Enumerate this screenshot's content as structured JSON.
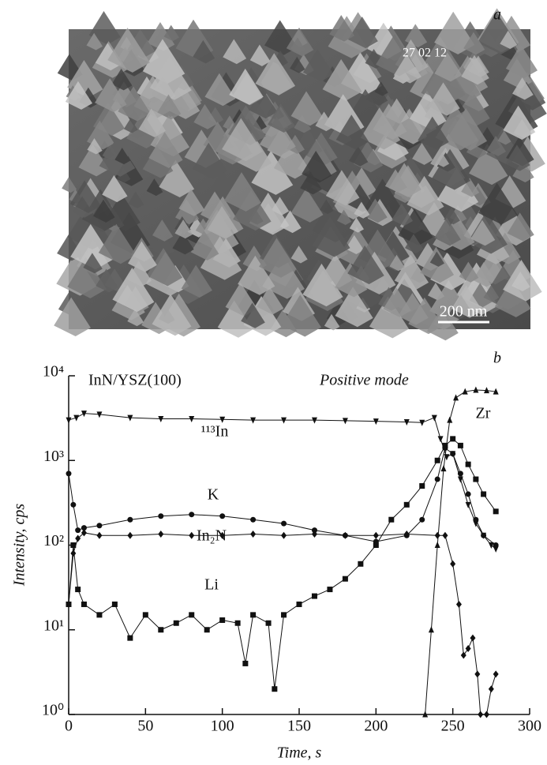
{
  "panel_a": {
    "label": "a",
    "date": "27 02 12",
    "scale_bar": "200 nm"
  },
  "chart_data": {
    "type": "line",
    "panel_label": "b",
    "xlabel": "Time, s",
    "ylabel": "Intensity, cps",
    "annotations": [
      "InN/YSZ(100)",
      "Positive mode",
      "¹¹³In",
      "K",
      "In₂N",
      "Li",
      "Zr"
    ],
    "log_y": true,
    "xlim": [
      0,
      300
    ],
    "xticks": [
      0,
      50,
      100,
      150,
      200,
      250,
      300
    ],
    "ylim": [
      1,
      10000
    ],
    "yticks": [
      {
        "value": 1,
        "label": "10⁰"
      },
      {
        "value": 10,
        "label": "10¹"
      },
      {
        "value": 100,
        "label": "10²"
      },
      {
        "value": 1000,
        "label": "10³"
      },
      {
        "value": 10000,
        "label": "10⁴"
      }
    ],
    "series": [
      {
        "name": "¹¹³In",
        "color": "#111111",
        "marker": "triangle-down",
        "x": [
          0,
          5,
          10,
          20,
          40,
          60,
          80,
          100,
          120,
          140,
          160,
          180,
          200,
          220,
          230,
          238,
          242,
          246,
          250,
          255,
          260,
          265,
          270,
          275,
          278
        ],
        "values": [
          3000,
          3200,
          3600,
          3500,
          3200,
          3100,
          3100,
          3050,
          3000,
          3000,
          3000,
          2950,
          2900,
          2850,
          2800,
          3200,
          1800,
          1100,
          1200,
          600,
          300,
          180,
          130,
          100,
          90
        ]
      },
      {
        "name": "Zr",
        "color": "#111111",
        "marker": "triangle-up",
        "x": [
          232,
          236,
          240,
          244,
          248,
          252,
          258,
          265,
          272,
          278
        ],
        "values": [
          1,
          10,
          100,
          800,
          3000,
          5500,
          6500,
          6800,
          6700,
          6500
        ]
      },
      {
        "name": "K",
        "color": "#111111",
        "marker": "circle",
        "x": [
          0,
          3,
          6,
          10,
          20,
          40,
          60,
          80,
          100,
          120,
          140,
          160,
          180,
          200,
          220,
          230,
          240,
          245,
          250,
          255,
          260,
          265,
          270,
          278
        ],
        "values": [
          700,
          300,
          150,
          160,
          170,
          200,
          220,
          230,
          220,
          200,
          180,
          150,
          130,
          110,
          130,
          200,
          600,
          1400,
          1200,
          700,
          400,
          200,
          130,
          100
        ]
      },
      {
        "name": "In₂N",
        "color": "#111111",
        "marker": "diamond",
        "x": [
          0,
          3,
          6,
          10,
          20,
          40,
          60,
          80,
          100,
          120,
          140,
          160,
          180,
          200,
          220,
          240,
          245,
          250,
          254,
          257,
          260,
          263,
          266,
          268,
          272,
          275,
          278
        ],
        "values": [
          20,
          80,
          120,
          140,
          130,
          130,
          135,
          130,
          130,
          135,
          130,
          135,
          130,
          130,
          135,
          130,
          130,
          60,
          20,
          5,
          6,
          8,
          3,
          1,
          1,
          2,
          3
        ]
      },
      {
        "name": "Li",
        "color": "#111111",
        "marker": "square",
        "x": [
          0,
          3,
          6,
          10,
          20,
          30,
          40,
          50,
          60,
          70,
          80,
          90,
          100,
          110,
          115,
          120,
          130,
          134,
          140,
          150,
          160,
          170,
          180,
          190,
          200,
          210,
          220,
          230,
          240,
          245,
          250,
          255,
          260,
          265,
          270,
          278
        ],
        "values": [
          20,
          100,
          30,
          20,
          15,
          20,
          8,
          15,
          10,
          12,
          15,
          10,
          13,
          12,
          4,
          15,
          12,
          2,
          15,
          20,
          25,
          30,
          40,
          60,
          100,
          200,
          300,
          500,
          1000,
          1500,
          1800,
          1500,
          900,
          600,
          400,
          250
        ]
      }
    ]
  }
}
